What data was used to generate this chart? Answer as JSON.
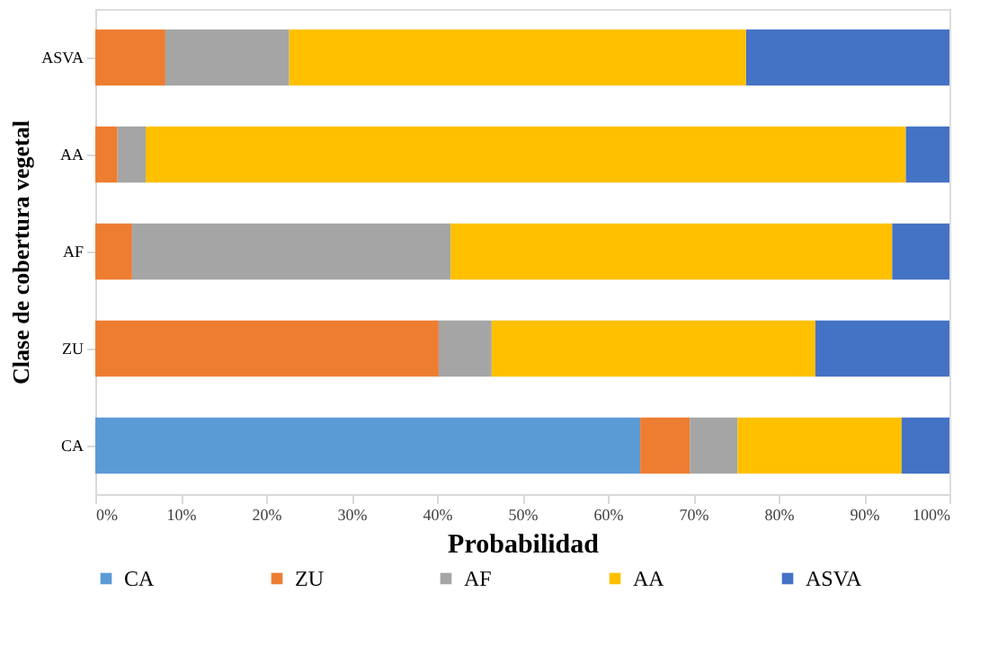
{
  "chart_data": {
    "type": "bar",
    "orientation": "horizontal",
    "stacked": true,
    "xlabel": "Probabilidad",
    "ylabel": "Clase de cobertura vegetal",
    "categories": [
      "ASVA",
      "AA",
      "AF",
      "ZU",
      "CA"
    ],
    "series": [
      {
        "name": "CA",
        "color": "#5b9bd5",
        "values": [
          0,
          0,
          0,
          0,
          63.8
        ]
      },
      {
        "name": "ZU",
        "color": "#ed7d31",
        "values": [
          8.2,
          2.6,
          4.3,
          40.2,
          5.8
        ]
      },
      {
        "name": "AF",
        "color": "#a5a5a5",
        "values": [
          14.5,
          3.3,
          37.3,
          6.2,
          5.6
        ]
      },
      {
        "name": "AA",
        "color": "#ffc000",
        "values": [
          53.5,
          89.0,
          51.7,
          37.9,
          19.2
        ]
      },
      {
        "name": "ASVA",
        "color": "#4472c4",
        "values": [
          23.8,
          5.1,
          6.7,
          15.7,
          5.6
        ]
      }
    ],
    "xlim": [
      0,
      100
    ],
    "xticks": [
      {
        "value": 0,
        "label": "0%"
      },
      {
        "value": 10,
        "label": "10%"
      },
      {
        "value": 20,
        "label": "20%"
      },
      {
        "value": 30,
        "label": "30%"
      },
      {
        "value": 40,
        "label": "40%"
      },
      {
        "value": 50,
        "label": "50%"
      },
      {
        "value": 60,
        "label": "60%"
      },
      {
        "value": 70,
        "label": "70%"
      },
      {
        "value": 80,
        "label": "80%"
      },
      {
        "value": 90,
        "label": "90%"
      },
      {
        "value": 100,
        "label": "100%"
      }
    ],
    "legend": "bottom"
  }
}
